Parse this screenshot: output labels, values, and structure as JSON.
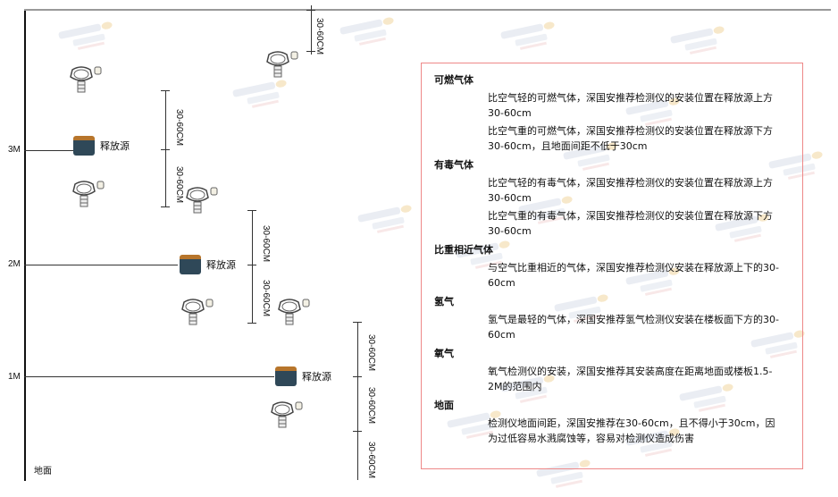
{
  "watermark": {
    "brand": "SINGOAN",
    "cn": "深国安"
  },
  "floors": [
    "3M",
    "2M",
    "1M",
    "地面"
  ],
  "source_label": "释放源",
  "dimension_label": "30-60CM",
  "panel": {
    "sections": [
      {
        "heading": "可燃气体",
        "paragraphs": [
          "比空气轻的可燃气体，深国安推荐检测仪的安装位置在释放源上方30-60cm",
          "比空气重的可燃气体，深国安推荐检测仪的安装位置在释放源下方30-60cm，且地面间距不低于30cm"
        ]
      },
      {
        "heading": "有毒气体",
        "paragraphs": [
          "比空气轻的有毒气体，深国安推荐检测仪的安装位置在释放源上方30-60cm",
          "比空气重的有毒气体，深国安推荐检测仪的安装位置在释放源下方30-60cm"
        ]
      },
      {
        "heading": "比重相近气体",
        "paragraphs": [
          "与空气比重相近的气体，深国安推荐检测仪安装在释放源上下的30-60cm"
        ]
      },
      {
        "heading": "氢气",
        "paragraphs": [
          "氢气是最轻的气体，深国安推荐氢气检测仪安装在楼板面下方的30-60cm"
        ]
      },
      {
        "heading": "氧气",
        "paragraphs": [
          "氧气检测仪的安装，深国安推荐其安装高度在距离地面或楼板1.5-2M的范围内"
        ]
      },
      {
        "heading": "地面",
        "paragraphs": [
          "检测仪地面间距，深国安推荐在30-60cm，且不得小于30cm，因为过低容易水溅腐蚀等，容易对检测仪造成伤害"
        ]
      }
    ]
  }
}
